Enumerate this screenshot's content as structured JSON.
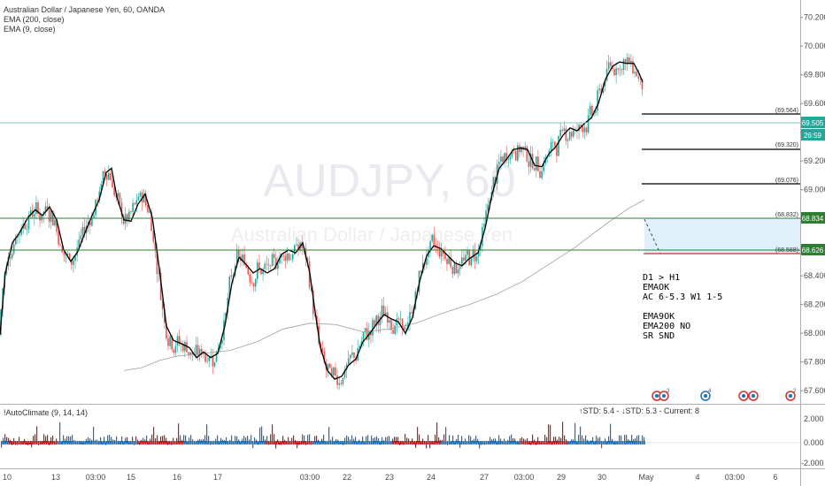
{
  "header": {
    "symbol_line": "Australian Dollar / Japanese Yen, 60, OANDA",
    "indicator_1": "EMA (200, close)",
    "indicator_2": "EMA (9, close)"
  },
  "watermark": {
    "line1": "AUDJPY, 60",
    "line2": "Australian Dollar / Japanese Yen"
  },
  "colors": {
    "up": "#26a69a",
    "down": "#ef5350",
    "ema9": "#000000",
    "ema200": "#9e9e9e",
    "osc_pos": "#1e6fb5",
    "osc_neg": "#b71c1c",
    "zone_fill": "#dceefa",
    "zone_line_top": "#2e7d32",
    "zone_line_bottom": "#c62828",
    "hline": "#80cbc4"
  },
  "price_levels": [
    {
      "label": "(69.564)",
      "value": 69.564
    },
    {
      "label": "(69.320)",
      "value": 69.32
    },
    {
      "label": "(69.076)",
      "value": 69.076
    },
    {
      "label": "(68.832)",
      "value": 68.832
    },
    {
      "label": "(68.588)",
      "value": 68.588
    }
  ],
  "price_tags": {
    "current_price": "69.505",
    "countdown": "26:59",
    "zone_top": "68.834",
    "zone_bottom": "68.626"
  },
  "notes": [
    "D1 > H1",
    "EMAOK",
    "AC 6-5.3 W1 1-5",
    "",
    "EMA9OK",
    "EMA200 NO",
    "SR SND"
  ],
  "oscillator": {
    "title": "!AutoClimate (9, 14, 14)",
    "readout": "↑STD: 5.4 - ↓STD: 5.3 - Current: 8",
    "ticks": [
      "2.000",
      "0.000",
      "-2.000"
    ]
  },
  "event_badges": [
    "3",
    "4",
    "2"
  ],
  "chart_data": {
    "type": "candlestick",
    "title": "Australian Dollar / Japanese Yen, 60, OANDA",
    "y_ticks": [
      "70.200",
      "70.000",
      "69.800",
      "69.600",
      "69.400",
      "69.200",
      "69.000",
      "68.800",
      "68.600",
      "68.400",
      "68.200",
      "68.000",
      "67.800",
      "67.600"
    ],
    "ylim": [
      67.57,
      70.26
    ],
    "x_tick_labels": [
      "10",
      "13",
      "03:00",
      "15",
      "16",
      "17",
      "03:00",
      "22",
      "23",
      "24",
      "27",
      "03:00",
      "29",
      "30",
      "May",
      "4",
      "03:00",
      "6"
    ],
    "ema9_path": [
      [
        0,
        67.99
      ],
      [
        6,
        68.42
      ],
      [
        14,
        68.63
      ],
      [
        22,
        68.7
      ],
      [
        32,
        68.81
      ],
      [
        40,
        68.86
      ],
      [
        48,
        68.82
      ],
      [
        56,
        68.88
      ],
      [
        64,
        68.79
      ],
      [
        72,
        68.58
      ],
      [
        80,
        68.5
      ],
      [
        88,
        68.57
      ],
      [
        96,
        68.7
      ],
      [
        104,
        68.82
      ],
      [
        112,
        68.93
      ],
      [
        120,
        69.12
      ],
      [
        126,
        69.15
      ],
      [
        132,
        68.95
      ],
      [
        140,
        68.79
      ],
      [
        148,
        68.78
      ],
      [
        156,
        68.9
      ],
      [
        164,
        68.97
      ],
      [
        172,
        68.81
      ],
      [
        180,
        68.45
      ],
      [
        188,
        68.05
      ],
      [
        196,
        67.95
      ],
      [
        204,
        67.93
      ],
      [
        214,
        67.9
      ],
      [
        222,
        67.83
      ],
      [
        230,
        67.87
      ],
      [
        238,
        67.83
      ],
      [
        246,
        67.86
      ],
      [
        254,
        68.05
      ],
      [
        262,
        68.35
      ],
      [
        270,
        68.53
      ],
      [
        278,
        68.48
      ],
      [
        286,
        68.42
      ],
      [
        294,
        68.45
      ],
      [
        302,
        68.42
      ],
      [
        310,
        68.45
      ],
      [
        318,
        68.55
      ],
      [
        326,
        68.58
      ],
      [
        334,
        68.56
      ],
      [
        342,
        68.63
      ],
      [
        350,
        68.42
      ],
      [
        356,
        68.15
      ],
      [
        362,
        67.9
      ],
      [
        370,
        67.74
      ],
      [
        378,
        67.68
      ],
      [
        386,
        67.7
      ],
      [
        394,
        67.78
      ],
      [
        402,
        67.82
      ],
      [
        410,
        67.94
      ],
      [
        418,
        68.0
      ],
      [
        426,
        68.07
      ],
      [
        434,
        68.13
      ],
      [
        442,
        68.1
      ],
      [
        450,
        68.08
      ],
      [
        458,
        68.0
      ],
      [
        466,
        68.11
      ],
      [
        474,
        68.36
      ],
      [
        482,
        68.54
      ],
      [
        490,
        68.61
      ],
      [
        498,
        68.59
      ],
      [
        506,
        68.54
      ],
      [
        514,
        68.49
      ],
      [
        522,
        68.47
      ],
      [
        530,
        68.52
      ],
      [
        540,
        68.56
      ],
      [
        548,
        68.73
      ],
      [
        556,
        68.97
      ],
      [
        564,
        69.15
      ],
      [
        572,
        69.21
      ],
      [
        580,
        69.28
      ],
      [
        588,
        69.29
      ],
      [
        596,
        69.28
      ],
      [
        604,
        69.17
      ],
      [
        612,
        69.16
      ],
      [
        620,
        69.25
      ],
      [
        628,
        69.3
      ],
      [
        636,
        69.38
      ],
      [
        644,
        69.43
      ],
      [
        652,
        69.41
      ],
      [
        660,
        69.46
      ],
      [
        668,
        69.5
      ],
      [
        676,
        69.6
      ],
      [
        684,
        69.77
      ],
      [
        692,
        69.86
      ],
      [
        700,
        69.89
      ],
      [
        708,
        69.88
      ],
      [
        716,
        69.88
      ],
      [
        722,
        69.81
      ],
      [
        726,
        69.75
      ]
    ],
    "ema200_path": [
      [
        140,
        67.74
      ],
      [
        160,
        67.76
      ],
      [
        180,
        67.81
      ],
      [
        200,
        67.84
      ],
      [
        230,
        67.86
      ],
      [
        260,
        67.88
      ],
      [
        290,
        67.94
      ],
      [
        320,
        68.03
      ],
      [
        350,
        68.07
      ],
      [
        380,
        68.06
      ],
      [
        410,
        68.01
      ],
      [
        440,
        68.03
      ],
      [
        470,
        68.07
      ],
      [
        500,
        68.14
      ],
      [
        530,
        68.2
      ],
      [
        560,
        68.27
      ],
      [
        590,
        68.36
      ],
      [
        620,
        68.48
      ],
      [
        650,
        68.6
      ],
      [
        680,
        68.74
      ],
      [
        710,
        68.87
      ],
      [
        728,
        68.93
      ]
    ]
  }
}
